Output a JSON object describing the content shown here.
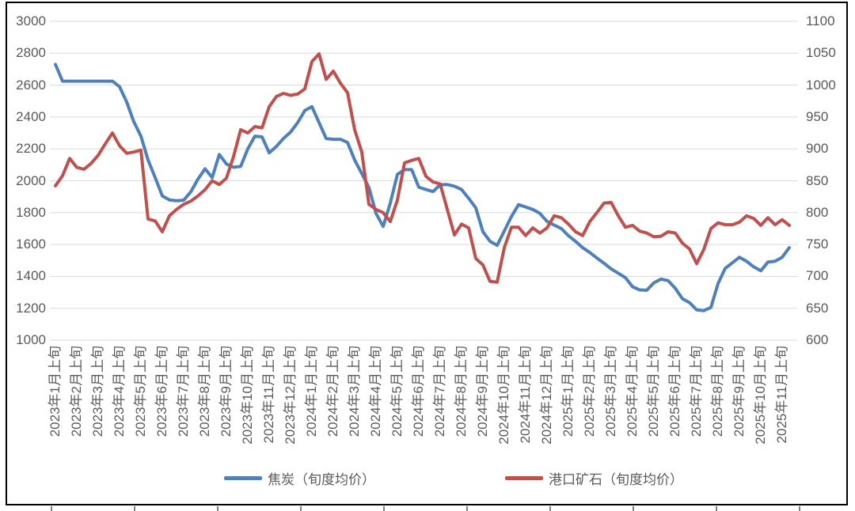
{
  "chart_data": {
    "type": "line",
    "title": "",
    "xlabel": "",
    "ylabel_left": "",
    "ylabel_right": "",
    "grid": "horizontal",
    "legend_position": "bottom",
    "points_per_month": 3,
    "x_labels": [
      "2023年1月上旬",
      "2023年2月上旬",
      "2023年3月上旬",
      "2023年4月上旬",
      "2023年5月上旬",
      "2023年6月上旬",
      "2023年7月上旬",
      "2023年8月上旬",
      "2023年9月上旬",
      "2023年10月上旬",
      "2023年11月上旬",
      "2023年12月上旬",
      "2024年1月上旬",
      "2024年2月上旬",
      "2024年3月上旬",
      "2024年4月上旬",
      "2024年5月上旬",
      "2024年6月上旬",
      "2024年7月上旬",
      "2024年8月上旬",
      "2024年9月上旬",
      "2024年10月上旬",
      "2024年11月上旬",
      "2024年12月上旬",
      "2025年1月上旬",
      "2025年2月上旬",
      "2025年3月上旬",
      "2025年4月上旬",
      "2025年5月上旬",
      "2025年6月上旬",
      "2025年7月上旬",
      "2025年8月上旬",
      "2025年9月上旬",
      "2025年10月上旬",
      "2025年11月上旬"
    ],
    "left_axis": {
      "min": 1000,
      "max": 3000,
      "step": 200,
      "ticks": [
        "3000",
        "2800",
        "2600",
        "2400",
        "2200",
        "2000",
        "1800",
        "1600",
        "1400",
        "1200",
        "1000"
      ]
    },
    "right_axis": {
      "min": 600,
      "max": 1100,
      "step": 50,
      "ticks": [
        "1100",
        "1050",
        "1000",
        "950",
        "900",
        "850",
        "800",
        "750",
        "700",
        "650",
        "600"
      ]
    },
    "series": [
      {
        "name": "焦炭（旬度均价）",
        "color": "#4E80BC",
        "axis": "left",
        "values": [
          2730,
          2625,
          2625,
          2625,
          2625,
          2625,
          2625,
          2625,
          2625,
          2590,
          2495,
          2370,
          2280,
          2130,
          2020,
          1905,
          1880,
          1875,
          1878,
          1930,
          2010,
          2075,
          2020,
          2165,
          2105,
          2085,
          2090,
          2200,
          2280,
          2275,
          2175,
          2215,
          2265,
          2305,
          2365,
          2440,
          2465,
          2365,
          2265,
          2260,
          2260,
          2240,
          2130,
          2045,
          1958,
          1795,
          1713,
          1860,
          2040,
          2070,
          2070,
          1960,
          1945,
          1932,
          1975,
          1976,
          1966,
          1945,
          1890,
          1830,
          1680,
          1620,
          1595,
          1685,
          1775,
          1850,
          1835,
          1820,
          1795,
          1745,
          1722,
          1700,
          1655,
          1620,
          1580,
          1550,
          1515,
          1482,
          1447,
          1420,
          1392,
          1335,
          1315,
          1313,
          1360,
          1383,
          1373,
          1325,
          1260,
          1235,
          1190,
          1185,
          1205,
          1355,
          1450,
          1485,
          1520,
          1495,
          1460,
          1435,
          1490,
          1495,
          1520,
          1580
        ]
      },
      {
        "name": "港口矿石（旬度均价）",
        "color": "#C0504D",
        "axis": "right",
        "values": [
          842,
          858,
          885,
          871,
          868,
          877,
          890,
          908,
          925,
          905,
          893,
          895,
          898,
          790,
          787,
          770,
          795,
          805,
          813,
          818,
          826,
          836,
          850,
          844,
          854,
          888,
          930,
          925,
          935,
          933,
          966,
          982,
          987,
          984,
          986,
          994,
          1037,
          1049,
          1009,
          1022,
          1003,
          988,
          930,
          895,
          813,
          805,
          800,
          786,
          820,
          878,
          882,
          885,
          857,
          848,
          845,
          805,
          765,
          782,
          776,
          728,
          718,
          692,
          691,
          745,
          777,
          777,
          764,
          776,
          768,
          776,
          795,
          792,
          782,
          770,
          764,
          786,
          800,
          815,
          816,
          795,
          777,
          780,
          771,
          768,
          762,
          763,
          770,
          768,
          752,
          743,
          720,
          742,
          775,
          784,
          781,
          781,
          785,
          795,
          791,
          780,
          792,
          781,
          789,
          780
        ]
      }
    ]
  },
  "colors": {
    "grid": "#D9D9D9",
    "text": "#595959",
    "frame": "#000000",
    "background": "#FFFFFF"
  }
}
